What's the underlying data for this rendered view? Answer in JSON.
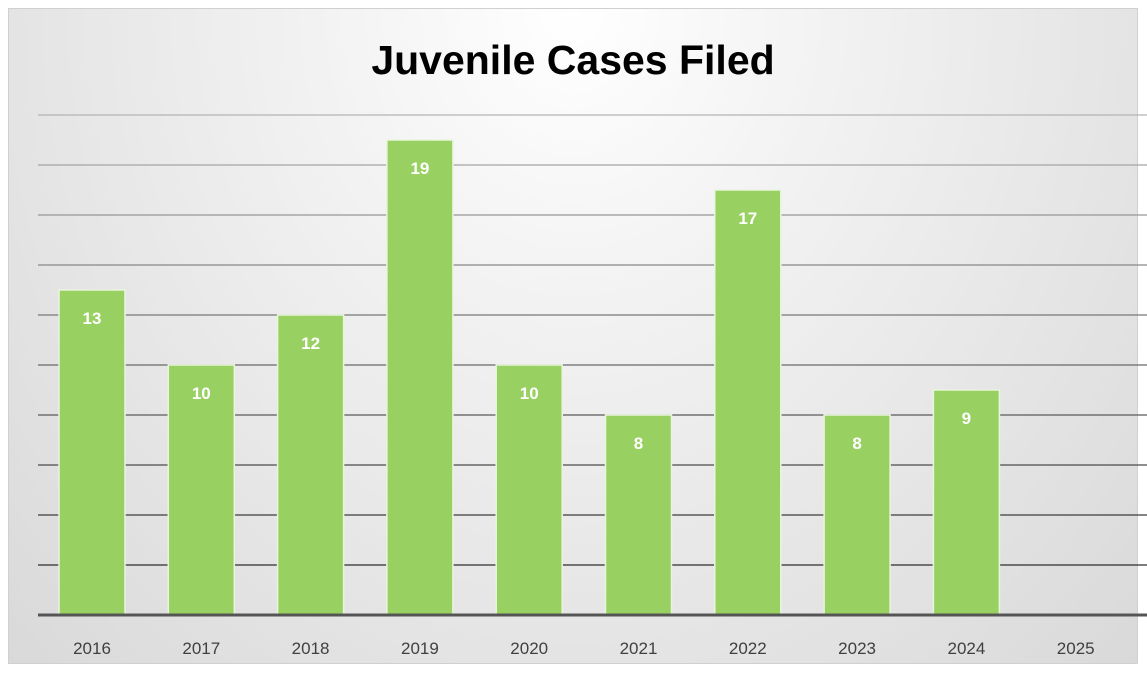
{
  "chart_data": {
    "type": "bar",
    "title": "Juvenile Cases Filed",
    "xlabel": "",
    "ylabel": "",
    "categories": [
      "2016",
      "2017",
      "2018",
      "2019",
      "2020",
      "2021",
      "2022",
      "2023",
      "2024",
      "2025"
    ],
    "values": [
      13,
      10,
      12,
      19,
      10,
      8,
      17,
      8,
      9,
      null
    ],
    "data_labels": [
      "13",
      "10",
      "12",
      "19",
      "10",
      "8",
      "17",
      "8",
      "9",
      ""
    ],
    "ylim": [
      0,
      20
    ],
    "grid": true,
    "legend": "none",
    "colors": {
      "bar": "#98d161",
      "bar_edge": "#e8f5dc",
      "label": "#ffffff",
      "axis": "#555555"
    }
  }
}
